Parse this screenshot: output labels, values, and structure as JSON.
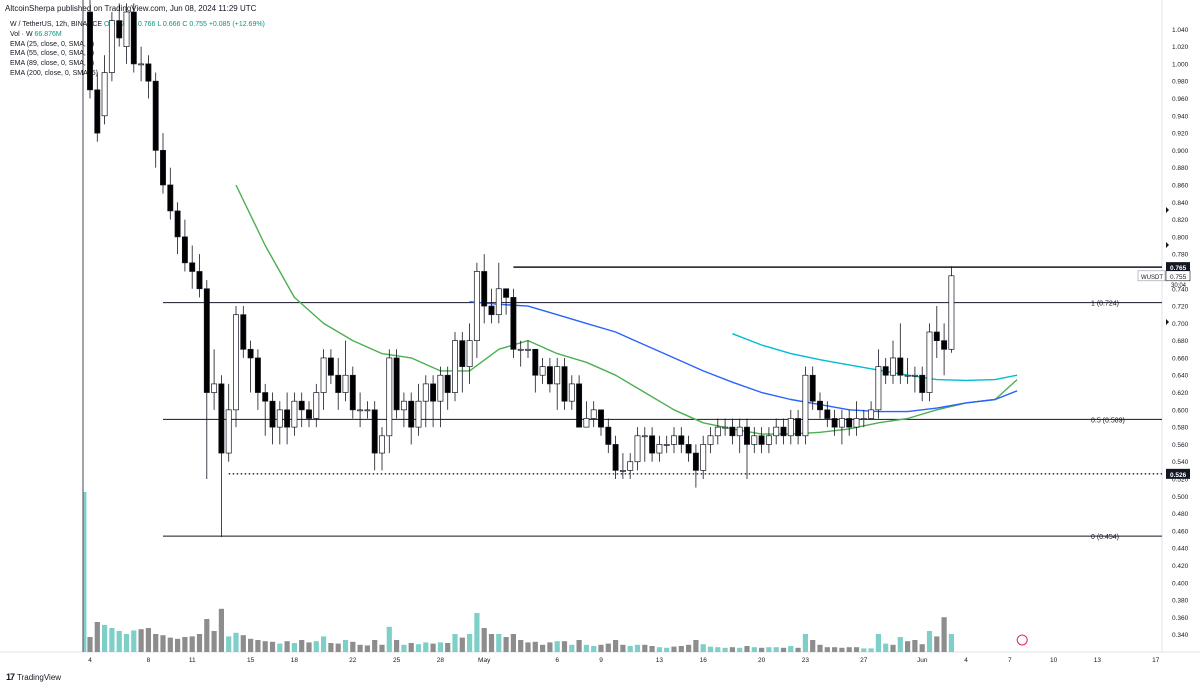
{
  "header": {
    "publish_text": "AltcoinSherpa published on TradingView.com, Jun 08, 2024 11:29 UTC"
  },
  "legend": {
    "symbol_line": "W / TetherUS, 12h, BINANCE",
    "ohlc": "O 0.670  H 0.766  L 0.666  C 0.755  +0.085 (+12.69%)",
    "volume_label": "Vol · W",
    "volume_value": "66.876M",
    "ema_lines": [
      "EMA (25, close, 0, SMA, 5)",
      "EMA (55, close, 0, SMA, 5)",
      "EMA (89, close, 0, SMA, 5)",
      "EMA (200, close, 0, SMA, 5)"
    ]
  },
  "footer": {
    "brand": "TradingView"
  },
  "colors": {
    "up": "#ffffff",
    "down": "#000000",
    "wick": "#131722",
    "ema25": "#4caf50",
    "ema55": "#2962ff",
    "ema89": "#00bcd4",
    "vol_up": "#7fcfc9",
    "vol_down": "#8d8d8d",
    "hline": "#131722"
  },
  "chart_data": {
    "type": "candlestick",
    "symbol": "W / TetherUS",
    "interval": "12h",
    "exchange": "BINANCE",
    "ylim": [
      0.32,
      1.06
    ],
    "y_ticks": [
      1.04,
      1.02,
      1.0,
      0.98,
      0.96,
      0.94,
      0.92,
      0.9,
      0.88,
      0.86,
      0.84,
      0.82,
      0.8,
      0.78,
      0.76,
      0.74,
      0.72,
      0.7,
      0.68,
      0.66,
      0.64,
      0.62,
      0.6,
      0.58,
      0.56,
      0.54,
      0.52,
      0.5,
      0.48,
      0.46,
      0.44,
      0.42,
      0.4,
      0.38,
      0.36,
      0.34
    ],
    "x_ticks": [
      {
        "label": "4",
        "bar": 0
      },
      {
        "label": "8",
        "bar": 8
      },
      {
        "label": "11",
        "bar": 14
      },
      {
        "label": "15",
        "bar": 22
      },
      {
        "label": "18",
        "bar": 28
      },
      {
        "label": "22",
        "bar": 36
      },
      {
        "label": "25",
        "bar": 42
      },
      {
        "label": "28",
        "bar": 48
      },
      {
        "label": "May",
        "bar": 54
      },
      {
        "label": "6",
        "bar": 64
      },
      {
        "label": "9",
        "bar": 70
      },
      {
        "label": "13",
        "bar": 78
      },
      {
        "label": "16",
        "bar": 84
      },
      {
        "label": "20",
        "bar": 92
      },
      {
        "label": "23",
        "bar": 98
      },
      {
        "label": "27",
        "bar": 106
      },
      {
        "label": "Jun",
        "bar": 114
      },
      {
        "label": "4",
        "bar": 120
      },
      {
        "label": "7",
        "bar": 126
      },
      {
        "label": "10",
        "bar": 132
      },
      {
        "label": "13",
        "bar": 138
      },
      {
        "label": "17",
        "bar": 146
      }
    ],
    "candles": [
      [
        1.06,
        0.97,
        1.08,
        0.96
      ],
      [
        0.97,
        0.92,
        0.99,
        0.91
      ],
      [
        0.94,
        0.99,
        1.01,
        0.93
      ],
      [
        0.99,
        1.05,
        1.06,
        0.98
      ],
      [
        1.05,
        1.03,
        1.07,
        1.02
      ],
      [
        1.02,
        1.06,
        1.07,
        1.0
      ],
      [
        1.06,
        1.0,
        1.07,
        0.99
      ],
      [
        1.0,
        1.0,
        1.02,
        0.98
      ],
      [
        1.0,
        0.98,
        1.01,
        0.96
      ],
      [
        0.98,
        0.9,
        0.99,
        0.88
      ],
      [
        0.9,
        0.86,
        0.92,
        0.85
      ],
      [
        0.86,
        0.83,
        0.88,
        0.82
      ],
      [
        0.83,
        0.8,
        0.84,
        0.78
      ],
      [
        0.8,
        0.77,
        0.82,
        0.76
      ],
      [
        0.77,
        0.76,
        0.79,
        0.74
      ],
      [
        0.76,
        0.74,
        0.78,
        0.73
      ],
      [
        0.74,
        0.62,
        0.75,
        0.52
      ],
      [
        0.62,
        0.63,
        0.67,
        0.6
      ],
      [
        0.63,
        0.55,
        0.64,
        0.453
      ],
      [
        0.55,
        0.6,
        0.63,
        0.54
      ],
      [
        0.6,
        0.71,
        0.72,
        0.58
      ],
      [
        0.71,
        0.67,
        0.72,
        0.66
      ],
      [
        0.67,
        0.66,
        0.68,
        0.62
      ],
      [
        0.66,
        0.62,
        0.67,
        0.6
      ],
      [
        0.62,
        0.61,
        0.63,
        0.57
      ],
      [
        0.61,
        0.58,
        0.62,
        0.56
      ],
      [
        0.58,
        0.6,
        0.61,
        0.56
      ],
      [
        0.6,
        0.58,
        0.62,
        0.56
      ],
      [
        0.58,
        0.61,
        0.62,
        0.57
      ],
      [
        0.61,
        0.6,
        0.62,
        0.58
      ],
      [
        0.6,
        0.59,
        0.61,
        0.58
      ],
      [
        0.59,
        0.62,
        0.63,
        0.58
      ],
      [
        0.62,
        0.66,
        0.67,
        0.6
      ],
      [
        0.66,
        0.64,
        0.67,
        0.63
      ],
      [
        0.64,
        0.62,
        0.66,
        0.6
      ],
      [
        0.62,
        0.64,
        0.68,
        0.61
      ],
      [
        0.64,
        0.6,
        0.65,
        0.59
      ],
      [
        0.6,
        0.6,
        0.62,
        0.58
      ],
      [
        0.6,
        0.6,
        0.61,
        0.59
      ],
      [
        0.6,
        0.55,
        0.61,
        0.53
      ],
      [
        0.55,
        0.57,
        0.58,
        0.53
      ],
      [
        0.57,
        0.66,
        0.67,
        0.55
      ],
      [
        0.66,
        0.6,
        0.67,
        0.59
      ],
      [
        0.6,
        0.61,
        0.62,
        0.58
      ],
      [
        0.61,
        0.58,
        0.62,
        0.56
      ],
      [
        0.58,
        0.61,
        0.63,
        0.57
      ],
      [
        0.61,
        0.63,
        0.64,
        0.58
      ],
      [
        0.63,
        0.61,
        0.64,
        0.58
      ],
      [
        0.61,
        0.64,
        0.65,
        0.58
      ],
      [
        0.64,
        0.62,
        0.65,
        0.6
      ],
      [
        0.62,
        0.68,
        0.69,
        0.61
      ],
      [
        0.68,
        0.65,
        0.69,
        0.62
      ],
      [
        0.65,
        0.68,
        0.7,
        0.63
      ],
      [
        0.68,
        0.76,
        0.77,
        0.66
      ],
      [
        0.76,
        0.72,
        0.78,
        0.7
      ],
      [
        0.72,
        0.71,
        0.74,
        0.7
      ],
      [
        0.71,
        0.74,
        0.77,
        0.7
      ],
      [
        0.74,
        0.73,
        0.74,
        0.71
      ],
      [
        0.73,
        0.67,
        0.74,
        0.66
      ],
      [
        0.67,
        0.67,
        0.68,
        0.65
      ],
      [
        0.67,
        0.67,
        0.68,
        0.66
      ],
      [
        0.67,
        0.64,
        0.67,
        0.62
      ],
      [
        0.64,
        0.65,
        0.66,
        0.63
      ],
      [
        0.65,
        0.63,
        0.66,
        0.62
      ],
      [
        0.63,
        0.65,
        0.66,
        0.6
      ],
      [
        0.65,
        0.61,
        0.66,
        0.6
      ],
      [
        0.61,
        0.63,
        0.64,
        0.6
      ],
      [
        0.63,
        0.58,
        0.64,
        0.58
      ],
      [
        0.58,
        0.59,
        0.61,
        0.58
      ],
      [
        0.59,
        0.6,
        0.61,
        0.58
      ],
      [
        0.6,
        0.58,
        0.6,
        0.57
      ],
      [
        0.58,
        0.56,
        0.59,
        0.55
      ],
      [
        0.56,
        0.53,
        0.57,
        0.52
      ],
      [
        0.53,
        0.53,
        0.55,
        0.52
      ],
      [
        0.53,
        0.54,
        0.55,
        0.52
      ],
      [
        0.54,
        0.57,
        0.58,
        0.53
      ],
      [
        0.57,
        0.57,
        0.58,
        0.54
      ],
      [
        0.57,
        0.55,
        0.58,
        0.54
      ],
      [
        0.55,
        0.56,
        0.57,
        0.54
      ],
      [
        0.56,
        0.56,
        0.57,
        0.55
      ],
      [
        0.56,
        0.57,
        0.58,
        0.55
      ],
      [
        0.57,
        0.56,
        0.58,
        0.55
      ],
      [
        0.56,
        0.55,
        0.57,
        0.54
      ],
      [
        0.55,
        0.53,
        0.56,
        0.51
      ],
      [
        0.53,
        0.56,
        0.57,
        0.52
      ],
      [
        0.56,
        0.57,
        0.58,
        0.55
      ],
      [
        0.57,
        0.58,
        0.59,
        0.56
      ],
      [
        0.58,
        0.58,
        0.59,
        0.57
      ],
      [
        0.58,
        0.57,
        0.59,
        0.56
      ],
      [
        0.57,
        0.58,
        0.59,
        0.55
      ],
      [
        0.58,
        0.56,
        0.59,
        0.52
      ],
      [
        0.56,
        0.57,
        0.58,
        0.55
      ],
      [
        0.57,
        0.56,
        0.58,
        0.55
      ],
      [
        0.56,
        0.57,
        0.58,
        0.55
      ],
      [
        0.57,
        0.58,
        0.59,
        0.56
      ],
      [
        0.58,
        0.57,
        0.59,
        0.56
      ],
      [
        0.57,
        0.59,
        0.6,
        0.56
      ],
      [
        0.59,
        0.57,
        0.6,
        0.56
      ],
      [
        0.57,
        0.64,
        0.65,
        0.56
      ],
      [
        0.64,
        0.61,
        0.65,
        0.6
      ],
      [
        0.61,
        0.6,
        0.62,
        0.59
      ],
      [
        0.6,
        0.59,
        0.61,
        0.58
      ],
      [
        0.59,
        0.58,
        0.6,
        0.57
      ],
      [
        0.58,
        0.59,
        0.6,
        0.56
      ],
      [
        0.59,
        0.58,
        0.6,
        0.57
      ],
      [
        0.58,
        0.59,
        0.61,
        0.57
      ],
      [
        0.59,
        0.59,
        0.6,
        0.58
      ],
      [
        0.59,
        0.6,
        0.61,
        0.59
      ],
      [
        0.6,
        0.65,
        0.67,
        0.59
      ],
      [
        0.65,
        0.64,
        0.66,
        0.63
      ],
      [
        0.64,
        0.66,
        0.68,
        0.63
      ],
      [
        0.66,
        0.64,
        0.7,
        0.63
      ],
      [
        0.64,
        0.64,
        0.66,
        0.63
      ],
      [
        0.64,
        0.64,
        0.65,
        0.62
      ],
      [
        0.64,
        0.62,
        0.65,
        0.61
      ],
      [
        0.62,
        0.69,
        0.7,
        0.61
      ],
      [
        0.69,
        0.68,
        0.72,
        0.66
      ],
      [
        0.68,
        0.67,
        0.7,
        0.64
      ],
      [
        0.67,
        0.755,
        0.766,
        0.666
      ]
    ],
    "ema25": [
      [
        20,
        0.86
      ],
      [
        24,
        0.79
      ],
      [
        28,
        0.73
      ],
      [
        32,
        0.7
      ],
      [
        36,
        0.68
      ],
      [
        40,
        0.665
      ],
      [
        44,
        0.66
      ],
      [
        48,
        0.645
      ],
      [
        52,
        0.645
      ],
      [
        56,
        0.67
      ],
      [
        60,
        0.68
      ],
      [
        64,
        0.665
      ],
      [
        68,
        0.655
      ],
      [
        72,
        0.64
      ],
      [
        76,
        0.62
      ],
      [
        80,
        0.6
      ],
      [
        84,
        0.585
      ],
      [
        88,
        0.578
      ],
      [
        92,
        0.572
      ],
      [
        96,
        0.572
      ],
      [
        100,
        0.574
      ],
      [
        104,
        0.578
      ],
      [
        108,
        0.585
      ],
      [
        112,
        0.59
      ],
      [
        116,
        0.6
      ],
      [
        120,
        0.608
      ],
      [
        124,
        0.612
      ],
      [
        127,
        0.635
      ]
    ],
    "ema55": [
      [
        52,
        0.725
      ],
      [
        56,
        0.722
      ],
      [
        60,
        0.72
      ],
      [
        64,
        0.71
      ],
      [
        68,
        0.7
      ],
      [
        72,
        0.69
      ],
      [
        76,
        0.675
      ],
      [
        80,
        0.66
      ],
      [
        84,
        0.645
      ],
      [
        88,
        0.632
      ],
      [
        92,
        0.62
      ],
      [
        96,
        0.612
      ],
      [
        100,
        0.606
      ],
      [
        104,
        0.6
      ],
      [
        108,
        0.598
      ],
      [
        112,
        0.598
      ],
      [
        116,
        0.602
      ],
      [
        120,
        0.608
      ],
      [
        124,
        0.612
      ],
      [
        127,
        0.622
      ]
    ],
    "ema89": [
      [
        88,
        0.688
      ],
      [
        92,
        0.675
      ],
      [
        96,
        0.665
      ],
      [
        100,
        0.658
      ],
      [
        104,
        0.652
      ],
      [
        108,
        0.646
      ],
      [
        112,
        0.64
      ],
      [
        116,
        0.635
      ],
      [
        120,
        0.634
      ],
      [
        124,
        0.635
      ],
      [
        127,
        0.64
      ]
    ],
    "hlines": [
      {
        "value": 0.765,
        "label": "",
        "bar_start": 58,
        "weight": 1.4
      },
      {
        "value": 0.724,
        "label": "1 (0.724)",
        "bar_start": 10,
        "weight": 1
      },
      {
        "value": 0.589,
        "label": "0.5 (0.589)",
        "bar_start": 10,
        "weight": 1
      },
      {
        "value": 0.454,
        "label": "0 (0.454)",
        "bar_start": 10,
        "weight": 1
      }
    ],
    "dotted_line": {
      "value": 0.526,
      "bar_start": 19
    },
    "price_badges": [
      {
        "value": 0.765,
        "text": "0.765",
        "dark": true
      },
      {
        "value": 0.755,
        "text": "0.755",
        "dark": false
      },
      {
        "value": 0.526,
        "text": "0.526",
        "dark": true
      }
    ],
    "symbol_badge": {
      "text": "WUSDT",
      "sub": "30:04"
    },
    "volume": [
      0.25,
      0.5,
      0.45,
      0.4,
      0.35,
      0.3,
      0.36,
      0.38,
      0.4,
      0.3,
      0.28,
      0.24,
      0.22,
      0.25,
      0.26,
      0.3,
      0.55,
      0.35,
      0.72,
      0.26,
      0.32,
      0.28,
      0.22,
      0.2,
      0.18,
      0.17,
      0.14,
      0.18,
      0.15,
      0.2,
      0.16,
      0.18,
      0.26,
      0.15,
      0.14,
      0.2,
      0.17,
      0.12,
      0.11,
      0.2,
      0.12,
      0.42,
      0.2,
      0.12,
      0.15,
      0.13,
      0.16,
      0.14,
      0.16,
      0.15,
      0.3,
      0.24,
      0.3,
      0.65,
      0.4,
      0.3,
      0.3,
      0.25,
      0.3,
      0.2,
      0.16,
      0.17,
      0.12,
      0.16,
      0.18,
      0.18,
      0.12,
      0.2,
      0.12,
      0.1,
      0.12,
      0.14,
      0.2,
      0.12,
      0.1,
      0.12,
      0.12,
      0.1,
      0.08,
      0.07,
      0.09,
      0.1,
      0.12,
      0.2,
      0.13,
      0.09,
      0.08,
      0.07,
      0.08,
      0.07,
      0.1,
      0.08,
      0.07,
      0.08,
      0.08,
      0.07,
      0.1,
      0.07,
      0.3,
      0.2,
      0.12,
      0.08,
      0.08,
      0.07,
      0.08,
      0.08,
      0.06,
      0.06,
      0.3,
      0.14,
      0.12,
      0.25,
      0.18,
      0.2,
      0.13,
      0.35,
      0.26,
      0.58,
      0.3
    ],
    "vol_up_idx": [
      2,
      3,
      4,
      5,
      6,
      19,
      20,
      26,
      28,
      31,
      32,
      35,
      41,
      43,
      45,
      46,
      48,
      50,
      52,
      53,
      56,
      64,
      66,
      68,
      69,
      74,
      75,
      78,
      79,
      84,
      85,
      86,
      87,
      89,
      91,
      93,
      94,
      96,
      98,
      106,
      107,
      108,
      109,
      111,
      115,
      118
    ]
  }
}
